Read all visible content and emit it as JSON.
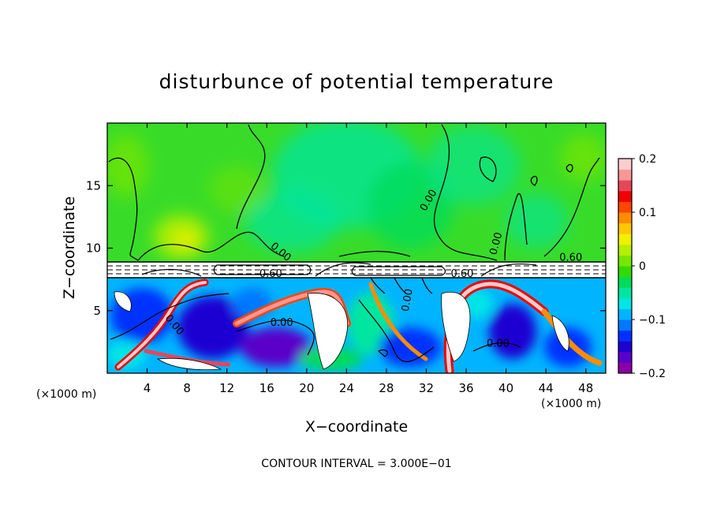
{
  "chart_data": {
    "type": "heatmap",
    "title": "disturbunce of potential temperature",
    "xlabel": "X−coordinate",
    "ylabel": "Z−coordinate",
    "x_unit": "(×1000 m)",
    "x_unit_right": "(×1000 m)",
    "xlim": [
      0,
      50
    ],
    "ylim": [
      0,
      20
    ],
    "x_ticks": [
      4,
      8,
      12,
      16,
      20,
      24,
      28,
      32,
      36,
      40,
      44,
      48
    ],
    "y_ticks": [
      5,
      10,
      15
    ],
    "footer": "CONTOUR INTERVAL = 3.000E−01",
    "colorbar": {
      "min": -0.2,
      "max": 0.2,
      "labels": [
        {
          "value": 0.2,
          "text": "0.2"
        },
        {
          "value": 0.1,
          "text": "0.1"
        },
        {
          "value": 0.0,
          "text": "0"
        },
        {
          "value": -0.1,
          "text": "−0.1"
        },
        {
          "value": -0.2,
          "text": "−0.2"
        }
      ],
      "colors": [
        "#8B00A6",
        "#5A00C8",
        "#1E00D2",
        "#0030FF",
        "#0078FF",
        "#00B4FF",
        "#00E6E6",
        "#00E6A0",
        "#00DC5A",
        "#32DC00",
        "#78E600",
        "#B4F000",
        "#F0F000",
        "#FFC800",
        "#FF8C00",
        "#FF4600",
        "#F00000",
        "#E6465A",
        "#FA9696",
        "#FFCCCC"
      ]
    },
    "contour_labels": [
      {
        "x": 17.2,
        "y": 9.5,
        "text": "0.00",
        "rot": 40
      },
      {
        "x": 32.5,
        "y": 13.7,
        "text": "0.00",
        "rot": -60
      },
      {
        "x": 39.3,
        "y": 10.3,
        "text": "0.00",
        "rot": -75
      },
      {
        "x": 16.4,
        "y": 7.7,
        "text": "0.60",
        "rot": 0
      },
      {
        "x": 35.6,
        "y": 7.7,
        "text": "0.60",
        "rot": 0
      },
      {
        "x": 6.5,
        "y": 3.7,
        "text": "0.00",
        "rot": 50
      },
      {
        "x": 17.5,
        "y": 3.8,
        "text": "0.00",
        "rot": 0
      },
      {
        "x": 30.4,
        "y": 5.8,
        "text": "0.00",
        "rot": -80
      },
      {
        "x": 39.2,
        "y": 2.1,
        "text": "0.00",
        "rot": 0
      },
      {
        "x": 46.5,
        "y": 9.0,
        "text": "0.60",
        "rot": 0
      }
    ]
  }
}
